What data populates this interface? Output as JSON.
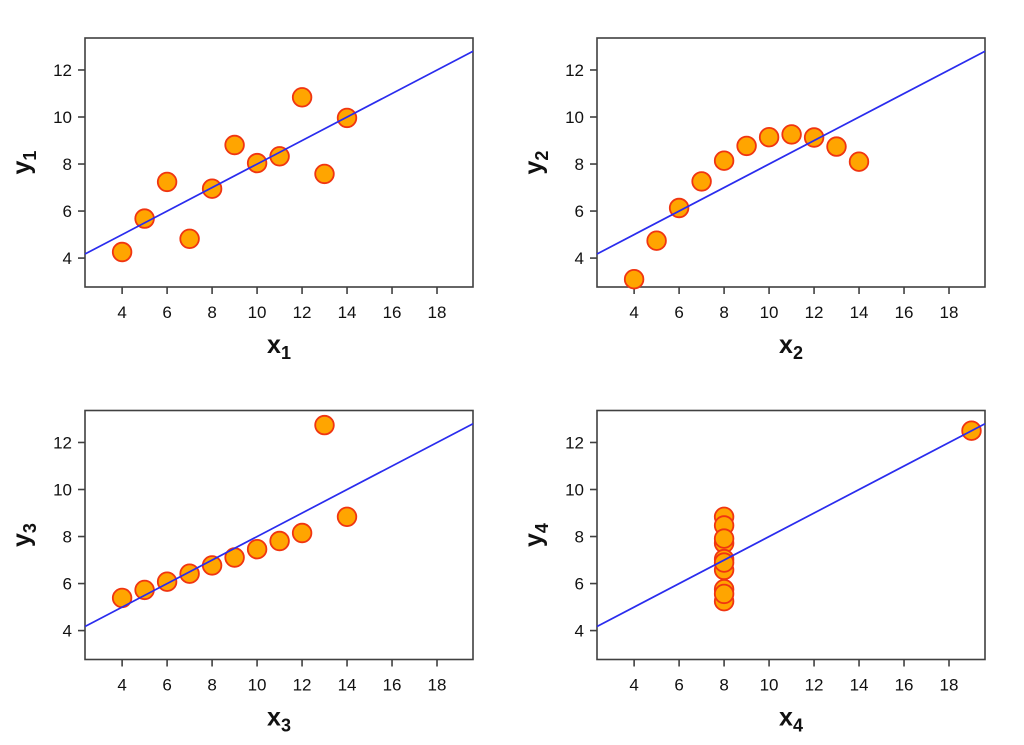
{
  "figure": {
    "background": "#ffffff",
    "layout": {
      "rows": 2,
      "cols": 2
    },
    "style": {
      "point_fill": "#ffa500",
      "point_stroke": "#f03511",
      "point_radius": 9.3,
      "point_stroke_width": 1.8,
      "line_color": "#2a2cee",
      "line_width": 1.7,
      "axis_color": "#404040",
      "axis_stroke_width": 1.6,
      "text_color": "#111111"
    }
  },
  "chart_data": [
    {
      "type": "scatter",
      "name": "anscombe-dataset-1",
      "title": "",
      "xlabel": {
        "base": "x",
        "sub": "1"
      },
      "ylabel": {
        "base": "y",
        "sub": "1"
      },
      "x": [
        10,
        8,
        13,
        9,
        11,
        14,
        6,
        4,
        12,
        7,
        5
      ],
      "y": [
        8.04,
        6.95,
        7.58,
        8.81,
        8.33,
        9.96,
        7.24,
        4.26,
        10.84,
        4.82,
        5.68
      ],
      "xlim": [
        2.35,
        19.6
      ],
      "ylim": [
        2.77,
        13.36
      ],
      "x_ticks": [
        4,
        6,
        8,
        10,
        12,
        14,
        16,
        18
      ],
      "y_ticks": [
        4,
        6,
        8,
        10,
        12
      ],
      "fit_line": {
        "slope": 0.5,
        "intercept": 3.0
      },
      "grid": false,
      "legend": "none"
    },
    {
      "type": "scatter",
      "name": "anscombe-dataset-2",
      "title": "",
      "xlabel": {
        "base": "x",
        "sub": "2"
      },
      "ylabel": {
        "base": "y",
        "sub": "2"
      },
      "x": [
        10,
        8,
        13,
        9,
        11,
        14,
        6,
        4,
        12,
        7,
        5
      ],
      "y": [
        9.14,
        8.14,
        8.74,
        8.77,
        9.26,
        8.1,
        6.13,
        3.1,
        9.13,
        7.26,
        4.74
      ],
      "xlim": [
        2.35,
        19.6
      ],
      "ylim": [
        2.77,
        13.36
      ],
      "x_ticks": [
        4,
        6,
        8,
        10,
        12,
        14,
        16,
        18
      ],
      "y_ticks": [
        4,
        6,
        8,
        10,
        12
      ],
      "fit_line": {
        "slope": 0.5,
        "intercept": 3.0
      },
      "grid": false,
      "legend": "none"
    },
    {
      "type": "scatter",
      "name": "anscombe-dataset-3",
      "title": "",
      "xlabel": {
        "base": "x",
        "sub": "3"
      },
      "ylabel": {
        "base": "y",
        "sub": "3"
      },
      "x": [
        10,
        8,
        13,
        9,
        11,
        14,
        6,
        4,
        12,
        7,
        5
      ],
      "y": [
        7.46,
        6.77,
        12.74,
        7.11,
        7.81,
        8.84,
        6.08,
        5.39,
        8.15,
        6.42,
        5.73
      ],
      "xlim": [
        2.35,
        19.6
      ],
      "ylim": [
        2.77,
        13.36
      ],
      "x_ticks": [
        4,
        6,
        8,
        10,
        12,
        14,
        16,
        18
      ],
      "y_ticks": [
        4,
        6,
        8,
        10,
        12
      ],
      "fit_line": {
        "slope": 0.5,
        "intercept": 3.0
      },
      "grid": false,
      "legend": "none"
    },
    {
      "type": "scatter",
      "name": "anscombe-dataset-4",
      "title": "",
      "xlabel": {
        "base": "x",
        "sub": "4"
      },
      "ylabel": {
        "base": "y",
        "sub": "4"
      },
      "x": [
        8,
        8,
        8,
        8,
        8,
        8,
        8,
        19,
        8,
        8,
        8
      ],
      "y": [
        6.58,
        5.76,
        7.71,
        8.84,
        8.47,
        7.04,
        5.25,
        12.5,
        5.56,
        7.91,
        6.89
      ],
      "xlim": [
        2.35,
        19.6
      ],
      "ylim": [
        2.77,
        13.36
      ],
      "x_ticks": [
        4,
        6,
        8,
        10,
        12,
        14,
        16,
        18
      ],
      "y_ticks": [
        4,
        6,
        8,
        10,
        12
      ],
      "fit_line": {
        "slope": 0.5,
        "intercept": 3.0
      },
      "grid": false,
      "legend": "none"
    }
  ]
}
